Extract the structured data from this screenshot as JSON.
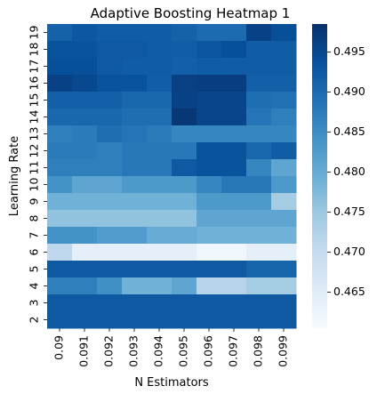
{
  "chart_data": {
    "type": "heatmap",
    "title": "Adaptive Boosting Heatmap 1",
    "xlabel": "N Estimators",
    "ylabel": "Learning Rate",
    "x": [
      "0.09",
      "0.091",
      "0.092",
      "0.093",
      "0.094",
      "0.095",
      "0.096",
      "0.097",
      "0.098",
      "0.099"
    ],
    "y": [
      "19",
      "18",
      "17",
      "16",
      "15",
      "14",
      "13",
      "12",
      "11",
      "10",
      "9",
      "8",
      "7",
      "6",
      "5",
      "4",
      "3",
      "2"
    ],
    "values": [
      [
        0.4912,
        0.4928,
        0.492,
        0.492,
        0.492,
        0.4912,
        0.49,
        0.49,
        0.496,
        0.494
      ],
      [
        0.4935,
        0.4935,
        0.4925,
        0.4925,
        0.492,
        0.4918,
        0.493,
        0.494,
        0.492,
        0.492
      ],
      [
        0.494,
        0.494,
        0.4925,
        0.492,
        0.492,
        0.4915,
        0.492,
        0.492,
        0.492,
        0.492
      ],
      [
        0.496,
        0.495,
        0.4935,
        0.4935,
        0.4918,
        0.4962,
        0.4965,
        0.4965,
        0.4915,
        0.4915
      ],
      [
        0.4915,
        0.4915,
        0.4915,
        0.4905,
        0.4905,
        0.496,
        0.4955,
        0.4955,
        0.4895,
        0.489
      ],
      [
        0.4905,
        0.4905,
        0.4905,
        0.4895,
        0.4895,
        0.4975,
        0.4955,
        0.4955,
        0.4885,
        0.487
      ],
      [
        0.487,
        0.4875,
        0.4895,
        0.4885,
        0.4875,
        0.486,
        0.486,
        0.486,
        0.486,
        0.486
      ],
      [
        0.4875,
        0.4875,
        0.487,
        0.488,
        0.488,
        0.488,
        0.4935,
        0.4935,
        0.4905,
        0.492
      ],
      [
        0.487,
        0.487,
        0.487,
        0.488,
        0.488,
        0.4925,
        0.4935,
        0.4935,
        0.486,
        0.481
      ],
      [
        0.484,
        0.481,
        0.481,
        0.483,
        0.483,
        0.483,
        0.486,
        0.488,
        0.488,
        0.483
      ],
      [
        0.479,
        0.479,
        0.479,
        0.479,
        0.479,
        0.479,
        0.483,
        0.483,
        0.483,
        0.474
      ],
      [
        0.476,
        0.476,
        0.476,
        0.476,
        0.476,
        0.476,
        0.481,
        0.481,
        0.481,
        0.481
      ],
      [
        0.484,
        0.484,
        0.4825,
        0.4825,
        0.48,
        0.48,
        0.479,
        0.479,
        0.479,
        0.479
      ],
      [
        0.471,
        0.464,
        0.464,
        0.464,
        0.464,
        0.464,
        0.462,
        0.462,
        0.464,
        0.464
      ],
      [
        0.4925,
        0.4925,
        0.4925,
        0.4925,
        0.4925,
        0.4925,
        0.4925,
        0.4925,
        0.491,
        0.491
      ],
      [
        0.487,
        0.487,
        0.4845,
        0.479,
        0.479,
        0.481,
        0.472,
        0.472,
        0.474,
        0.474
      ],
      [
        0.4925,
        0.4925,
        0.4925,
        0.4925,
        0.4925,
        0.4925,
        0.4925,
        0.4925,
        0.4925,
        0.4925
      ],
      [
        0.4925,
        0.4925,
        0.4925,
        0.4925,
        0.4925,
        0.4925,
        0.4925,
        0.4925,
        0.4925,
        0.4925
      ]
    ],
    "colorbar": {
      "range": [
        0.4605,
        0.4985
      ],
      "ticks": [
        "0.465",
        "0.470",
        "0.475",
        "0.480",
        "0.485",
        "0.490",
        "0.495"
      ],
      "colormap": [
        "#f7fbff",
        "#deebf7",
        "#c6dbef",
        "#9ecae1",
        "#6baed6",
        "#4292c6",
        "#2171b5",
        "#08519c",
        "#08306b"
      ]
    },
    "grid": false,
    "legend": "colorbar-right"
  }
}
